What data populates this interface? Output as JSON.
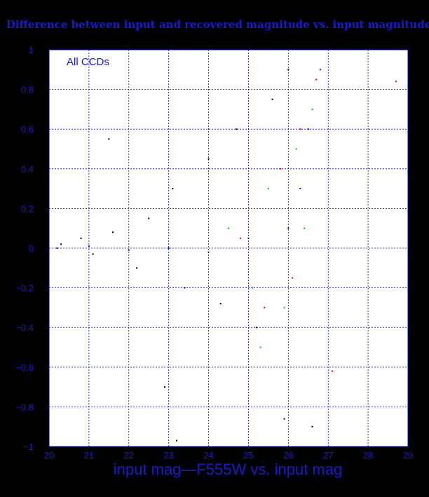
{
  "chart_data": {
    "type": "scatter",
    "title": "Difference between input and recovered magnitude vs. input magnitude",
    "xlabel": "input mag—F555W vs. input mag",
    "ylabel": "",
    "annotation": "All CCDs",
    "xlim": [
      20,
      29
    ],
    "ylim": [
      -1,
      1
    ],
    "x_ticks": [
      20,
      21,
      22,
      23,
      24,
      25,
      26,
      27,
      28,
      29
    ],
    "y_ticks": [
      -1,
      -0.8,
      -0.6,
      -0.4,
      -0.2,
      0,
      0.2,
      0.4,
      0.6,
      0.8,
      1
    ],
    "x_tick_labels": [
      "20",
      "21",
      "22",
      "23",
      "24",
      "25",
      "26",
      "27",
      "28",
      "29"
    ],
    "y_tick_labels": [
      "−1",
      "−0.8",
      "−0.6",
      "−0.4",
      "−0.2",
      "0",
      "0.2",
      "0.4",
      "0.6",
      "0.8",
      "1"
    ],
    "grid": true,
    "colors": {
      "background": "#000000",
      "plot_area": "#ffffff",
      "grid": "#0000cc",
      "text": "#1a1acc",
      "point_colors": [
        "#000000",
        "#00cc00",
        "#ee0000",
        "#0000ff"
      ]
    },
    "series": [
      {
        "color": "#000000",
        "points": [
          [
            20.3,
            0.02
          ],
          [
            20.8,
            0.05
          ],
          [
            21.1,
            -0.03
          ],
          [
            21.6,
            0.08
          ],
          [
            22.2,
            -0.1
          ],
          [
            22.5,
            0.15
          ],
          [
            23.1,
            0.3
          ],
          [
            23.4,
            -0.2
          ],
          [
            24.0,
            0.45
          ],
          [
            24.3,
            -0.28
          ],
          [
            24.7,
            0.6
          ],
          [
            25.2,
            -0.4
          ],
          [
            25.6,
            0.75
          ],
          [
            26.0,
            0.9
          ],
          [
            21.5,
            0.55
          ],
          [
            22.9,
            -0.7
          ],
          [
            23.2,
            -0.97
          ],
          [
            25.9,
            -0.86
          ],
          [
            26.6,
            -0.9
          ]
        ]
      },
      {
        "color": "#00cc00",
        "points": [
          [
            24.5,
            0.1
          ],
          [
            25.1,
            -0.2
          ],
          [
            25.5,
            0.3
          ],
          [
            25.9,
            -0.3
          ],
          [
            26.2,
            0.5
          ],
          [
            26.4,
            0.1
          ],
          [
            26.6,
            0.7
          ],
          [
            25.3,
            -0.5
          ]
        ]
      },
      {
        "color": "#ee0000",
        "points": [
          [
            24.8,
            0.05
          ],
          [
            25.4,
            -0.3
          ],
          [
            25.8,
            0.4
          ],
          [
            26.1,
            -0.15
          ],
          [
            26.3,
            0.6
          ],
          [
            26.7,
            0.85
          ],
          [
            28.7,
            0.84
          ],
          [
            27.1,
            -0.62
          ]
        ]
      },
      {
        "color": "#0000ff",
        "points": [
          [
            20.2,
            0.0
          ],
          [
            21.0,
            0.01
          ],
          [
            22.0,
            -0.01
          ],
          [
            23.0,
            0.0
          ],
          [
            24.0,
            -0.02
          ],
          [
            25.0,
            0.05
          ],
          [
            26.0,
            0.1
          ],
          [
            26.3,
            0.3
          ],
          [
            26.5,
            0.6
          ],
          [
            26.8,
            0.9
          ]
        ]
      }
    ]
  }
}
